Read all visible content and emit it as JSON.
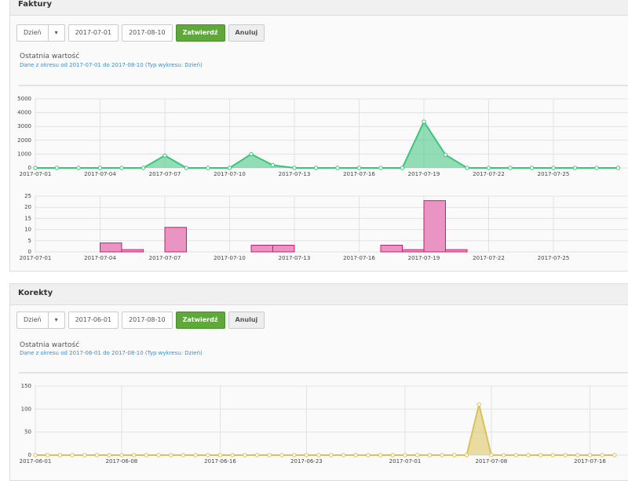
{
  "panels": [
    {
      "title": "Faktury",
      "controls": {
        "period": "Dzień",
        "date_from": "2017-07-01",
        "date_to": "2017-08-10",
        "submit": "Zatwierdź",
        "cancel": "Anuluj"
      },
      "chart_title": "Ostatnia wartość",
      "chart_subtitle": "Dane z okresu od 2017-07-01 do 2017-08-10 (Typ wykresu: Dzień)"
    },
    {
      "title": "Korekty",
      "controls": {
        "period": "Dzień",
        "date_from": "2017-06-01",
        "date_to": "2017-08-10",
        "submit": "Zatwierdź",
        "cancel": "Anuluj"
      },
      "chart_title": "Ostatnia wartość",
      "chart_subtitle": "Dane z okresu od 2017-06-01 do 2017-08-10 (Typ wykresu: Dzień)"
    }
  ],
  "chart_data": [
    {
      "type": "area",
      "color": "#3cc47c",
      "categories": [
        "2017-07-01",
        "2017-07-02",
        "2017-07-03",
        "2017-07-04",
        "2017-07-05",
        "2017-07-06",
        "2017-07-07",
        "2017-07-08",
        "2017-07-09",
        "2017-07-10",
        "2017-07-11",
        "2017-07-12",
        "2017-07-13",
        "2017-07-14",
        "2017-07-15",
        "2017-07-16",
        "2017-07-17",
        "2017-07-18",
        "2017-07-19",
        "2017-07-20",
        "2017-07-21",
        "2017-07-22",
        "2017-07-23",
        "2017-07-24",
        "2017-07-25",
        "2017-07-26",
        "2017-07-27",
        "2017-07-28"
      ],
      "values": [
        0,
        0,
        0,
        0,
        0,
        0,
        900,
        0,
        0,
        0,
        1000,
        200,
        0,
        0,
        0,
        0,
        0,
        0,
        3350,
        950,
        0,
        0,
        0,
        0,
        0,
        0,
        0,
        0
      ],
      "xticks": [
        "2017-07-01",
        "2017-07-04",
        "2017-07-07",
        "2017-07-10",
        "2017-07-13",
        "2017-07-16",
        "2017-07-19",
        "2017-07-22",
        "2017-07-25"
      ],
      "ylim": [
        0,
        5000
      ],
      "yticks": [
        0,
        1000,
        2000,
        3000,
        4000,
        5000
      ],
      "grid": true
    },
    {
      "type": "bar",
      "color": "#e994c2",
      "categories": [
        "2017-07-01",
        "2017-07-02",
        "2017-07-03",
        "2017-07-04",
        "2017-07-05",
        "2017-07-06",
        "2017-07-07",
        "2017-07-08",
        "2017-07-09",
        "2017-07-10",
        "2017-07-11",
        "2017-07-12",
        "2017-07-13",
        "2017-07-14",
        "2017-07-15",
        "2017-07-16",
        "2017-07-17",
        "2017-07-18",
        "2017-07-19",
        "2017-07-20",
        "2017-07-21",
        "2017-07-22",
        "2017-07-23",
        "2017-07-24",
        "2017-07-25",
        "2017-07-26",
        "2017-07-27",
        "2017-07-28"
      ],
      "values": [
        0,
        0,
        0,
        4,
        1,
        0,
        11,
        0,
        0,
        0,
        3,
        3,
        0,
        0,
        0,
        0,
        3,
        1,
        23,
        1,
        0,
        0,
        0,
        0,
        0,
        0,
        0,
        0
      ],
      "xticks": [
        "2017-07-01",
        "2017-07-04",
        "2017-07-07",
        "2017-07-10",
        "2017-07-13",
        "2017-07-16",
        "2017-07-19",
        "2017-07-22",
        "2017-07-25"
      ],
      "ylim": [
        0,
        25
      ],
      "yticks": [
        0,
        5,
        10,
        15,
        20,
        25
      ],
      "grid": true
    },
    {
      "type": "area",
      "color": "#d8c35a",
      "categories": [
        "2017-06-01",
        "2017-06-02",
        "2017-06-03",
        "2017-06-04",
        "2017-06-05",
        "2017-06-06",
        "2017-06-07",
        "2017-06-08",
        "2017-06-09",
        "2017-06-10",
        "2017-06-11",
        "2017-06-12",
        "2017-06-13",
        "2017-06-14",
        "2017-06-15",
        "2017-06-16",
        "2017-06-17",
        "2017-06-18",
        "2017-06-19",
        "2017-06-20",
        "2017-06-21",
        "2017-06-22",
        "2017-06-23",
        "2017-06-24",
        "2017-06-25",
        "2017-06-26",
        "2017-06-27",
        "2017-06-28",
        "2017-06-29",
        "2017-06-30",
        "2017-07-01",
        "2017-07-02",
        "2017-07-03",
        "2017-07-04",
        "2017-07-05",
        "2017-07-06",
        "2017-07-07",
        "2017-07-08",
        "2017-07-09",
        "2017-07-10",
        "2017-07-11",
        "2017-07-12",
        "2017-07-13",
        "2017-07-14",
        "2017-07-15",
        "2017-07-16",
        "2017-07-17",
        "2017-07-18"
      ],
      "values": [
        0,
        0,
        0,
        0,
        0,
        0,
        0,
        0,
        0,
        0,
        0,
        0,
        0,
        0,
        0,
        0,
        0,
        0,
        0,
        0,
        0,
        0,
        0,
        0,
        0,
        0,
        0,
        0,
        0,
        0,
        0,
        0,
        0,
        0,
        0,
        0,
        110,
        0,
        0,
        0,
        0,
        0,
        0,
        0,
        0,
        0,
        0,
        0
      ],
      "xticks": [
        "2017-06-01",
        "2017-06-08",
        "2017-06-16",
        "2017-06-23",
        "2017-07-01",
        "2017-07-08",
        "2017-07-16"
      ],
      "ylim": [
        0,
        150
      ],
      "yticks": [
        0,
        50,
        100,
        150
      ],
      "grid": true
    }
  ]
}
